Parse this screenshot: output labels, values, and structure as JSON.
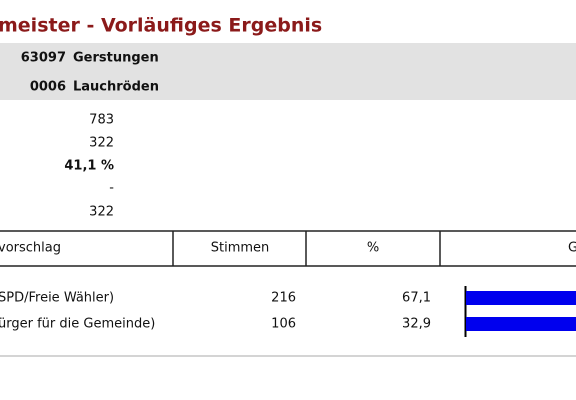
{
  "header": {
    "title": "meister - Vorläufiges Ergebnis"
  },
  "location": [
    {
      "code": "63097",
      "name": "Gerstungen"
    },
    {
      "code": "0006",
      "name": "Lauchröden"
    }
  ],
  "summary": [
    "783",
    "322",
    "41,1 %",
    "-",
    "322"
  ],
  "table": {
    "columns": [
      "vorschlag",
      "Stimmen",
      "%",
      "G"
    ],
    "bar_color": "#0000ee",
    "rows": [
      {
        "name": "SPD/Freie Wähler)",
        "votes": 216,
        "percent": 67.1,
        "percent_label": "67,1"
      },
      {
        "name": "ürger für die Gemeinde)",
        "votes": 106,
        "percent": 32.9,
        "percent_label": "32,9"
      }
    ]
  }
}
